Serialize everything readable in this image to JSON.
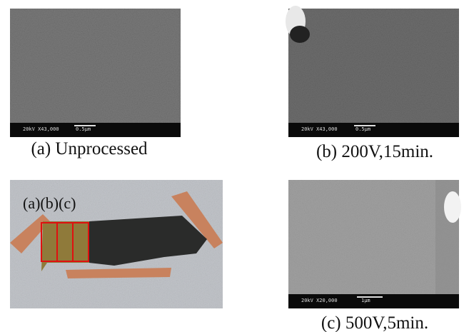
{
  "panels": [
    {
      "caption": "(a) Unprocessed",
      "scale_info": "20kV  X43,000",
      "scale_bar": "0.5μm"
    },
    {
      "caption": "(b) 200V,15min.",
      "scale_info": "20kV  X43,000",
      "scale_bar": "0.5μm"
    },
    {
      "caption": "(c) 500V,5min.",
      "scale_info": "20kV  X20,000",
      "scale_bar": "1μm"
    }
  ],
  "photo": {
    "label": "(a)(b)(c)"
  }
}
